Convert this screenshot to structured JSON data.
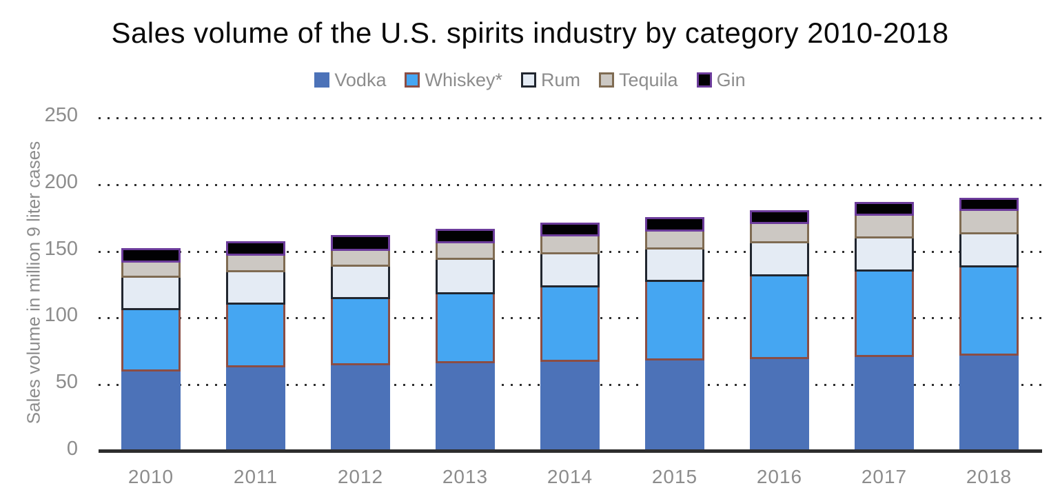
{
  "chart_data": {
    "type": "bar",
    "stacked": true,
    "title": "Sales volume of the U.S. spirits industry by category 2010-2018",
    "ylabel": "Sales volume in million 9 liter cases",
    "xlabel": "",
    "categories": [
      "2010",
      "2011",
      "2012",
      "2013",
      "2014",
      "2015",
      "2016",
      "2017",
      "2018"
    ],
    "y_ticks": [
      0,
      50,
      100,
      150,
      200,
      250
    ],
    "ylim": [
      0,
      250
    ],
    "grid": "horizontal-dotted",
    "legend_position": "top-center",
    "series": [
      {
        "name": "Vodka",
        "key": "vodka",
        "fill": "#4c72b8",
        "border": null,
        "values": [
          60,
          63,
          64.5,
          66,
          67,
          68,
          69,
          71,
          72
        ]
      },
      {
        "name": "Whiskey*",
        "key": "whiskey",
        "fill": "#45a6f2",
        "border": "#8b4d44",
        "values": [
          46,
          47,
          49.5,
          52,
          56,
          59,
          62,
          64,
          66
        ]
      },
      {
        "name": "Rum",
        "key": "rum",
        "fill": "#e4ebf4",
        "border": "#21262f",
        "values": [
          24,
          24.5,
          24.5,
          25.5,
          25,
          24.5,
          25,
          24.5,
          24.5
        ]
      },
      {
        "name": "Tequila",
        "key": "tequila",
        "fill": "#ccc8c3",
        "border": "#7f6b52",
        "values": [
          11.5,
          12,
          12,
          12.5,
          13,
          13.5,
          14.5,
          17,
          18
        ]
      },
      {
        "name": "Gin",
        "key": "gin",
        "fill": "#010103",
        "border": "#6c3c9b",
        "values": [
          11,
          11,
          11.5,
          11,
          10.5,
          10.5,
          10.5,
          10.5,
          9.5
        ]
      }
    ],
    "colors": {
      "axis_line": "#2d2d2d",
      "grid_dots": "#2e2e2e",
      "tick_text": "#8c8c8c",
      "title_text": "#0a0a0a",
      "background": "#ffffff"
    }
  }
}
